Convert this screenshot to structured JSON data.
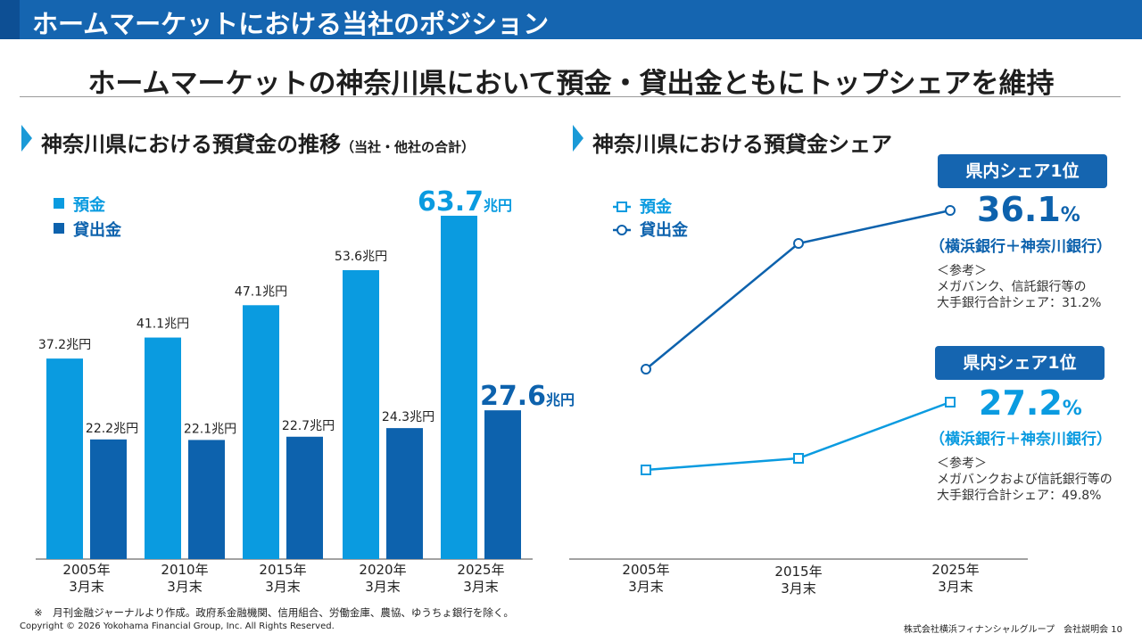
{
  "header": {
    "title": "ホームマーケットにおける当社のポジション"
  },
  "subtitle": "ホームマーケットの神奈川県において預金・貸出金ともにトップシェアを維持",
  "left_section": {
    "title": "神奈川県における預貸金の推移",
    "note": "（当社・他社の合計）"
  },
  "right_section": {
    "title": "神奈川県における預貸金シェア"
  },
  "colors": {
    "deposit": "#0a9be0",
    "loan": "#0d62ad",
    "accent": "#1565b0"
  },
  "chart_data": [
    {
      "type": "bar",
      "title": "神奈川県における預貸金の推移",
      "categories": [
        "2005年\n3月末",
        "2010年\n3月末",
        "2015年\n3月末",
        "2020年\n3月末",
        "2025年\n3月末"
      ],
      "series": [
        {
          "name": "預金",
          "values": [
            37.2,
            41.1,
            47.1,
            53.6,
            63.7
          ],
          "labels": [
            "37.2兆円",
            "41.1兆円",
            "47.1兆円",
            "53.6兆円",
            "63.7兆円"
          ]
        },
        {
          "name": "貸出金",
          "values": [
            22.2,
            22.1,
            22.7,
            24.3,
            27.6
          ],
          "labels": [
            "22.2兆円",
            "22.1兆円",
            "22.7兆円",
            "24.3兆円",
            "27.6兆円"
          ]
        }
      ],
      "unit": "兆円",
      "ylim": [
        0,
        67
      ]
    },
    {
      "type": "line",
      "title": "神奈川県における預貸金シェア",
      "categories": [
        "2005年\n3月末",
        "2015年\n3月末",
        "2025年\n3月末"
      ],
      "series": [
        {
          "name": "預金",
          "marker": "square",
          "latest": "27.2"
        },
        {
          "name": "貸出金",
          "marker": "circle",
          "latest": "36.1"
        }
      ]
    }
  ],
  "share_loan": {
    "badge": "県内シェア1位",
    "value": "36.1",
    "unit": "%",
    "holders": "（横浜銀行＋神奈川銀行）",
    "ref": [
      "＜参考＞",
      "メガバンク、信託銀行等の",
      "大手銀行合計シェア：31.2%"
    ]
  },
  "share_deposit": {
    "badge": "県内シェア1位",
    "value": "27.2",
    "unit": "%",
    "holders": "（横浜銀行＋神奈川銀行）",
    "ref": [
      "＜参考＞",
      "メガバンクおよび信託銀行等の",
      "大手銀行合計シェア：49.8%"
    ]
  },
  "footer": {
    "note": "※　月刊金融ジャーナルより作成。政府系金融機関、信用組合、労働金庫、農協、ゆうちょ銀行を除く。",
    "copyright": "Copyright © 2026 Yokohama Financial Group, Inc. All Rights Reserved.",
    "company": "株式会社横浜フィナンシャルグループ　会社説明会",
    "page": "10"
  }
}
